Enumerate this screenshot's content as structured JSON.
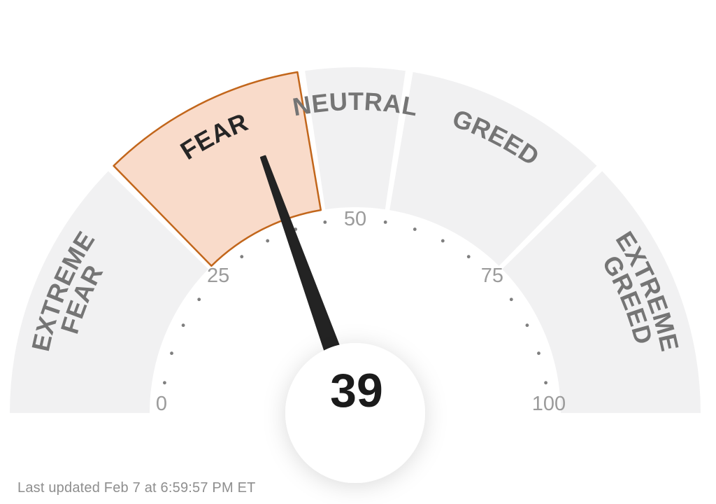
{
  "chart_data": {
    "type": "gauge",
    "value": 39,
    "value_label": "39",
    "min": 0,
    "max": 100,
    "major_ticks": [
      0,
      25,
      50,
      75,
      100
    ],
    "minor_tick_step": 5,
    "segments": [
      {
        "id": "extreme-fear",
        "label": "EXTREME FEAR",
        "label_lines": [
          "EXTREME",
          "FEAR"
        ],
        "from": 0,
        "to": 25,
        "highlighted": false
      },
      {
        "id": "fear",
        "label": "FEAR",
        "label_lines": [
          "FEAR"
        ],
        "from": 25,
        "to": 45,
        "highlighted": true
      },
      {
        "id": "neutral",
        "label": "NEUTRAL",
        "label_lines": [
          "NEUTRAL"
        ],
        "from": 45,
        "to": 55,
        "highlighted": false
      },
      {
        "id": "greed",
        "label": "GREED",
        "label_lines": [
          "GREED"
        ],
        "from": 55,
        "to": 75,
        "highlighted": false
      },
      {
        "id": "extreme-greed",
        "label": "EXTREME GREED",
        "label_lines": [
          "EXTREME",
          "GREED"
        ],
        "from": 75,
        "to": 100,
        "highlighted": false
      }
    ],
    "colors": {
      "background": "#ffffff",
      "segment_fill": "#f1f1f2",
      "segment_label": "#757575",
      "highlight_fill": "#f9dbca",
      "highlight_stroke": "#c2661b",
      "highlight_label": "#262626",
      "tick_dot": "#7f7f7f",
      "tick_label": "#9b9b9b",
      "needle": "#232323",
      "value_text": "#1b1b1b",
      "footer_text": "#8e8e8e"
    },
    "legend_position": "none",
    "grid": false
  },
  "footer": {
    "text": "Last updated Feb 7 at 6:59:57 PM ET"
  }
}
